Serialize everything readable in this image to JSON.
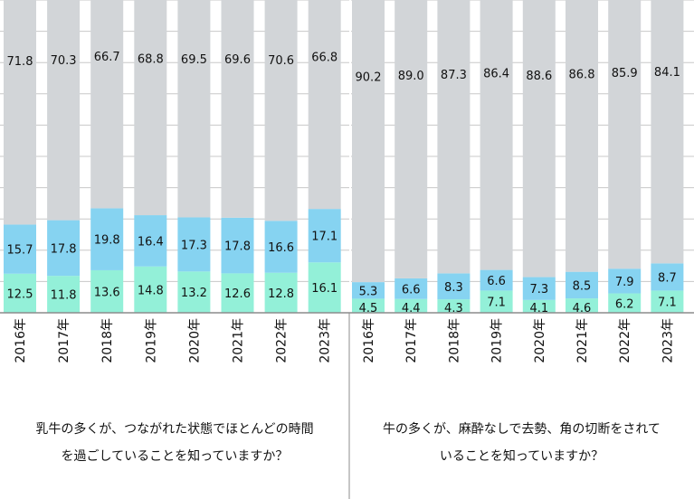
{
  "colors": {
    "bottom": "#93f0d8",
    "middle": "#86d3f1",
    "top": "#d2d5d8",
    "grid": "#c8c8c8",
    "axis": "#8c8c8c",
    "label": "#111111"
  },
  "chart_data": [
    {
      "type": "bar",
      "stacked": true,
      "categories": [
        "2016年",
        "2017年",
        "2018年",
        "2019年",
        "2020年",
        "2021年",
        "2022年",
        "2023年"
      ],
      "series": [
        {
          "values": [
            12.5,
            11.8,
            13.6,
            14.8,
            13.2,
            12.6,
            12.8,
            16.1
          ]
        },
        {
          "values": [
            15.7,
            17.8,
            19.8,
            16.4,
            17.3,
            17.8,
            16.6,
            17.1
          ]
        },
        {
          "values": [
            71.8,
            70.3,
            66.7,
            68.8,
            69.5,
            69.6,
            70.6,
            66.8
          ]
        }
      ],
      "ylim": [
        0,
        100
      ],
      "grid": true,
      "xlabel": "",
      "ylabel": "",
      "caption": [
        "乳牛の多くが、つながれた状態でほとんどの時間",
        "を過ごしていることを知っていますか？"
      ]
    },
    {
      "type": "bar",
      "stacked": true,
      "categories": [
        "2016年",
        "2017年",
        "2018年",
        "2019年",
        "2020年",
        "2021年",
        "2022年",
        "2023年"
      ],
      "series": [
        {
          "values": [
            4.5,
            4.4,
            4.3,
            7.1,
            4.1,
            4.6,
            6.2,
            7.1
          ]
        },
        {
          "values": [
            5.3,
            6.6,
            8.3,
            6.6,
            7.3,
            8.5,
            7.9,
            8.7
          ]
        },
        {
          "values": [
            90.2,
            89.0,
            87.3,
            86.4,
            88.6,
            86.8,
            85.9,
            84.1
          ]
        }
      ],
      "ylim": [
        0,
        100
      ],
      "grid": true,
      "xlabel": "",
      "ylabel": "",
      "caption": [
        "牛の多くが、麻酔なしで去勢、角の切断をされて",
        "いることを知っていますか？"
      ]
    }
  ]
}
